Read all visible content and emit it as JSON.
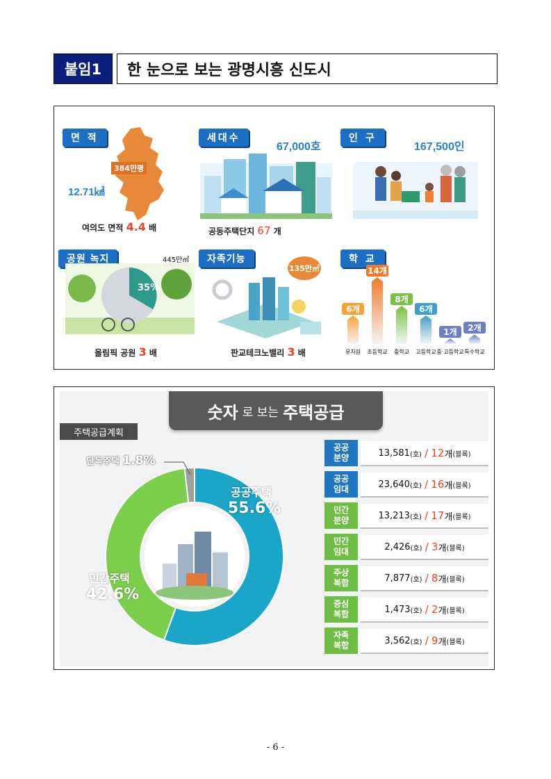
{
  "header": {
    "tag": "붙임1",
    "title": "한 눈으로 보는 광명시흥 신도시"
  },
  "overview": {
    "area": {
      "tag": "면 적",
      "map_label": "384만평",
      "value": "12.71㎢",
      "caption_pre": "여의도 면적",
      "caption_num": "4.4",
      "caption_post": "배"
    },
    "households": {
      "tag": "세대수",
      "value": "67,000호",
      "caption_pre": "공동주택단지",
      "caption_num": "67",
      "caption_post": "개"
    },
    "population": {
      "tag": "인 구",
      "value": "167,500인"
    },
    "park": {
      "tag": "공원 녹지",
      "area": "445만㎡",
      "percent": "35%",
      "caption_pre": "올림픽 공원",
      "caption_num": "3",
      "caption_post": "배"
    },
    "self_sufficiency": {
      "tag": "자족기능",
      "area": "135만㎡",
      "caption_pre": "판교테크노밸리",
      "caption_num": "3",
      "caption_post": "배"
    },
    "schools": {
      "tag": "학 교",
      "items": [
        {
          "count": "6개",
          "label": "유치원",
          "value": 6
        },
        {
          "count": "14개",
          "label": "초등학교",
          "value": 14
        },
        {
          "count": "8개",
          "label": "중학교",
          "value": 8
        },
        {
          "count": "6개",
          "label": "고등학교",
          "value": 6
        },
        {
          "count": "1개",
          "label": "중·고등학교",
          "value": 1
        },
        {
          "count": "2개",
          "label": "특수학교",
          "value": 2
        }
      ]
    }
  },
  "supply": {
    "banner_a": "숫자",
    "banner_b": "로 보는",
    "banner_c": "주택공급",
    "plan_tag": "주택공급계획",
    "donut": {
      "detached_label": "단독주택",
      "detached_pct": "1.8%",
      "detached_value": 1.8,
      "public_label": "공공주택",
      "public_pct": "55.6%",
      "public_value": 55.6,
      "private_label": "민간주택",
      "private_pct": "42.6%",
      "private_value": 42.6
    },
    "rows": [
      {
        "label_1": "공공",
        "label_2": "분양",
        "units": "13,581",
        "unit_suffix": "(호)",
        "sep": "/",
        "blocks": "12",
        "block_suffix": "개",
        "block_note": "(블록)",
        "color": "#1f76c2"
      },
      {
        "label_1": "공공",
        "label_2": "임대",
        "units": "23,640",
        "unit_suffix": "(호)",
        "sep": "/",
        "blocks": "16",
        "block_suffix": "개",
        "block_note": "(블록)",
        "color": "#1f76c2"
      },
      {
        "label_1": "민간",
        "label_2": "분양",
        "units": "13,213",
        "unit_suffix": "(호)",
        "sep": "/",
        "blocks": "17",
        "block_suffix": "개",
        "block_note": "(블록)",
        "color": "#6fbe44"
      },
      {
        "label_1": "민간",
        "label_2": "임대",
        "units": "2,426",
        "unit_suffix": "(호)",
        "sep": "/",
        "blocks": "3",
        "block_suffix": "개",
        "block_note": "(블록)",
        "color": "#6fbe44"
      },
      {
        "label_1": "주상",
        "label_2": "복합",
        "units": "7,877",
        "unit_suffix": "(호)",
        "sep": "/",
        "blocks": "8",
        "block_suffix": "개",
        "block_note": "(블록)",
        "color": "#6fbe44"
      },
      {
        "label_1": "중심",
        "label_2": "복합",
        "units": "1,473",
        "unit_suffix": "(호)",
        "sep": "/",
        "blocks": "2",
        "block_suffix": "개",
        "block_note": "(블록)",
        "color": "#6fbe44"
      },
      {
        "label_1": "자족",
        "label_2": "복합",
        "units": "3,562",
        "unit_suffix": "(호)",
        "sep": "/",
        "blocks": "9",
        "block_suffix": "개",
        "block_note": "(블록)",
        "color": "#6fbe44"
      }
    ]
  },
  "footer": {
    "page": "- 6 -"
  }
}
